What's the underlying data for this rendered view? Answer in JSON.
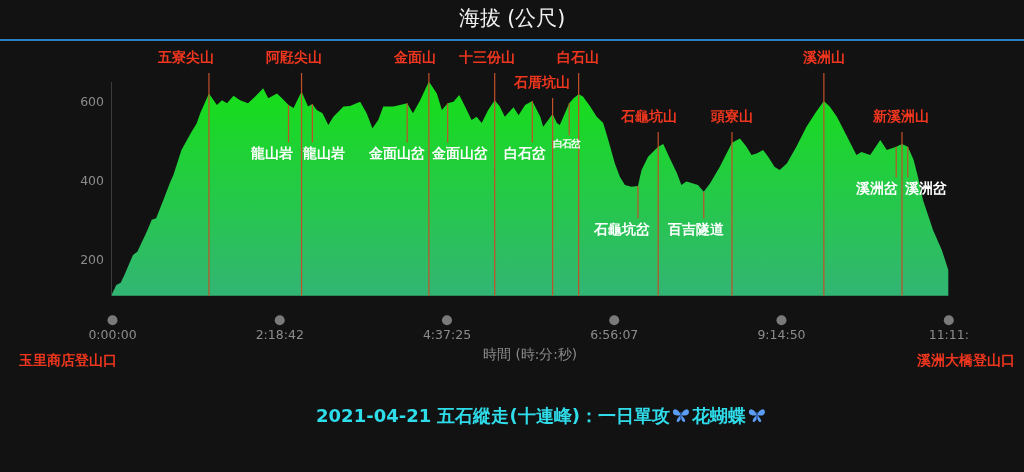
{
  "chart_data": {
    "type": "area",
    "title": "海拔 (公尺)",
    "xlabel": "時間 (時:分:秒)",
    "color": "#18dc1e",
    "x": [
      0,
      0.06,
      0.12,
      0.17,
      0.29,
      0.35,
      0.48,
      0.55,
      0.61,
      0.71,
      0.8,
      0.85,
      0.96,
      1.1,
      1.17,
      1.22,
      1.34,
      1.45,
      1.52,
      1.59,
      1.68,
      1.77,
      1.88,
      1.98,
      2.09,
      2.16,
      2.28,
      2.35,
      2.44,
      2.51,
      2.62,
      2.71,
      2.77,
      2.83,
      2.91,
      2.99,
      3.06,
      3.2,
      3.29,
      3.43,
      3.52,
      3.6,
      3.68,
      3.75,
      3.89,
      3.98,
      4.08,
      4.16,
      4.26,
      4.38,
      4.49,
      4.56,
      4.64,
      4.72,
      4.8,
      4.88,
      4.97,
      5.04,
      5.11,
      5.2,
      5.29,
      5.36,
      5.43,
      5.55,
      5.62,
      5.71,
      5.81,
      5.92,
      5.96,
      6.03,
      6.09,
      6.15,
      6.19,
      6.32,
      6.38,
      6.45,
      6.51,
      6.61,
      6.7,
      6.79,
      6.86,
      6.95,
      7.02,
      7.09,
      7.18,
      7.27,
      7.32,
      7.41,
      7.55,
      7.62,
      7.71,
      7.81,
      7.87,
      7.94,
      8.01,
      8.1,
      8.18,
      8.27,
      8.4,
      8.57,
      8.68,
      8.77,
      8.84,
      8.91,
      9.0,
      9.07,
      9.16,
      9.23,
      9.33,
      9.46,
      9.6,
      9.72,
      9.84,
      9.92,
      10.02,
      10.16,
      10.29,
      10.36,
      10.48,
      10.62,
      10.71,
      10.84,
      10.92,
      11.0,
      11.08,
      11.14,
      11.21,
      11.35,
      11.47,
      11.56
    ],
    "values": [
      112,
      135,
      141,
      160,
      211,
      219,
      270,
      300,
      304,
      350,
      393,
      414,
      477,
      523,
      544,
      570,
      620,
      591,
      603,
      595,
      614,
      603,
      595,
      612,
      633,
      608,
      620,
      608,
      591,
      583,
      625,
      587,
      593,
      578,
      570,
      540,
      561,
      587,
      588,
      599,
      570,
      532,
      553,
      587,
      587,
      591,
      595,
      570,
      603,
      650,
      620,
      578,
      595,
      599,
      616,
      587,
      553,
      561,
      545,
      578,
      603,
      587,
      561,
      585,
      565,
      591,
      601,
      561,
      536,
      553,
      568,
      545,
      540,
      595,
      608,
      618,
      612,
      587,
      561,
      545,
      502,
      443,
      409,
      388,
      384,
      386,
      426,
      460,
      485,
      492,
      456,
      418,
      388,
      397,
      393,
      388,
      371,
      393,
      434,
      495,
      506,
      485,
      464,
      468,
      477,
      460,
      434,
      426,
      443,
      485,
      536,
      570,
      601,
      587,
      561,
      511,
      464,
      472,
      464,
      502,
      477,
      485,
      492,
      485,
      452,
      409,
      350,
      274,
      224,
      173
    ],
    "xlim": [
      0,
      11.56
    ],
    "xticks": [
      {
        "value": 0,
        "label": "0:00:00"
      },
      {
        "value": 2.3117,
        "label": "2:18:42"
      },
      {
        "value": 4.6236,
        "label": "4:37:25"
      },
      {
        "value": 6.9353,
        "label": "6:56:07"
      },
      {
        "value": 9.2472,
        "label": "9:14:50"
      },
      {
        "value": 11.56,
        "label": "11:11:"
      }
    ],
    "ylim": [
      108,
      650
    ],
    "yticks": [
      200,
      400,
      600
    ],
    "ref_lines": [
      {
        "axis": "x",
        "value": 1.34,
        "label": "五寮尖山",
        "color": "#c2502a"
      },
      {
        "axis": "x",
        "value": 2.62,
        "label": "阿屘尖山",
        "color": "#c2502a"
      },
      {
        "axis": "x",
        "value": 4.38,
        "label": "金面山",
        "color": "#c2502a"
      },
      {
        "axis": "x",
        "value": 5.29,
        "label": "十三份山",
        "color": "#c2502a"
      },
      {
        "axis": "x",
        "value": 6.09,
        "label": "石厝坑山",
        "color": "#c2502a"
      },
      {
        "axis": "x",
        "value": 6.45,
        "label": "白石山",
        "color": "#c2502a"
      },
      {
        "axis": "x",
        "value": 7.55,
        "label": "石龜坑山",
        "color": "#c2502a"
      },
      {
        "axis": "x",
        "value": 8.57,
        "label": "頭寮山",
        "color": "#c2502a"
      },
      {
        "axis": "x",
        "value": 9.84,
        "label": "溪洲山",
        "color": "#c2502a"
      },
      {
        "axis": "x",
        "value": 10.92,
        "label": "新溪洲山",
        "color": "#c2502a"
      }
    ],
    "annotations": [
      {
        "text": "龍山岩",
        "x": 2.44,
        "y": 591
      },
      {
        "text": "龍山岩",
        "x": 2.77,
        "y": 593
      },
      {
        "text": "金面山岔",
        "x": 4.08,
        "y": 595
      },
      {
        "text": "金面山岔",
        "x": 4.64,
        "y": 595
      },
      {
        "text": "白石岔",
        "x": 5.81,
        "y": 601
      },
      {
        "text": "白石岔",
        "x": 6.32,
        "y": 595
      },
      {
        "text": "石龜坑岔",
        "x": 7.27,
        "y": 386
      },
      {
        "text": "百吉隧道",
        "x": 8.18,
        "y": 371
      },
      {
        "text": "溪洲岔",
        "x": 10.84,
        "y": 485
      },
      {
        "text": "溪洲岔",
        "x": 11.0,
        "y": 485
      },
      "玉里商店登山口",
      "溪洲大橋登山口",
      "2021-04-21 五石縱走(十連峰)：一日單攻",
      "花蝴蝶"
    ]
  }
}
